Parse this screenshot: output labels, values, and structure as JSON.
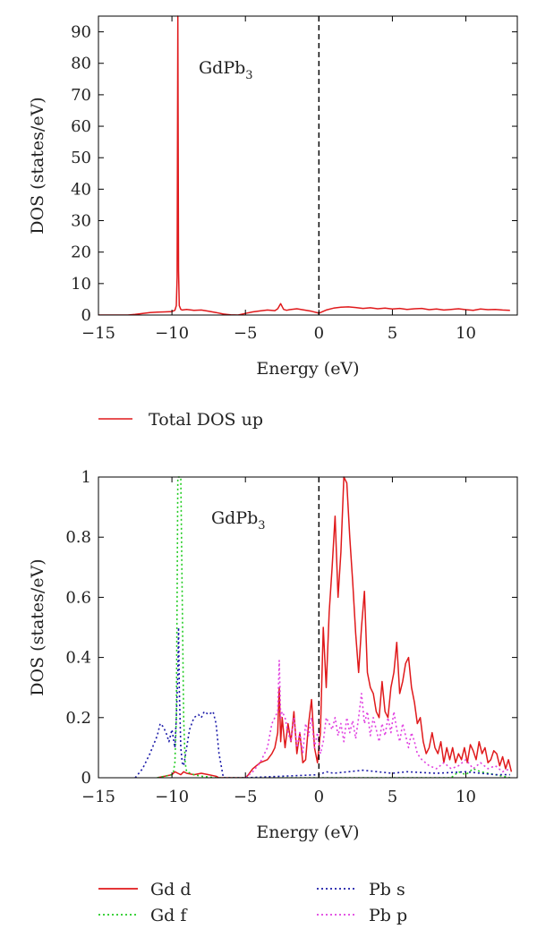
{
  "chart_data": [
    {
      "type": "line",
      "panel": "top",
      "annotation_main": "GdPb",
      "annotation_sub": "3",
      "xlabel": "Energy (eV)",
      "ylabel": "DOS (states/eV)",
      "xlim": [
        -15,
        13.5
      ],
      "ylim": [
        0,
        95
      ],
      "xticks": [
        -15,
        -10,
        -5,
        0,
        5,
        10
      ],
      "yticks": [
        0,
        10,
        20,
        30,
        40,
        50,
        60,
        70,
        80,
        90
      ],
      "xtick_labels": [
        "−15",
        "−10",
        "−5",
        "0",
        "5",
        "10"
      ],
      "ytick_labels": [
        "0",
        "10",
        "20",
        "30",
        "40",
        "50",
        "60",
        "70",
        "80",
        "90"
      ],
      "fermi_level": 0,
      "grid": false,
      "legend_position": "below",
      "series": [
        {
          "name": "Total DOS up",
          "color": "#e0191b",
          "style": "solid",
          "x": [
            -15,
            -13,
            -12.5,
            -12,
            -11.5,
            -11,
            -10.5,
            -10,
            -9.8,
            -9.7,
            -9.65,
            -9.6,
            -9.55,
            -9.5,
            -9.4,
            -9.3,
            -9,
            -8.5,
            -8,
            -7.5,
            -7,
            -6.5,
            -6,
            -5.5,
            -5,
            -4.5,
            -4,
            -3.5,
            -3,
            -2.8,
            -2.6,
            -2.4,
            -2.2,
            -2,
            -1.5,
            -1,
            -0.5,
            0,
            0.5,
            1,
            1.5,
            2,
            2.5,
            3,
            3.5,
            4,
            4.5,
            5,
            5.5,
            6,
            6.5,
            7,
            7.5,
            8,
            8.5,
            9,
            9.5,
            10,
            10.5,
            11,
            11.5,
            12,
            12.5,
            13
          ],
          "y": [
            0,
            0,
            0.2,
            0.5,
            0.8,
            0.9,
            1.0,
            1.1,
            1.5,
            3,
            12,
            95,
            14,
            3,
            1.8,
            1.6,
            1.8,
            1.5,
            1.6,
            1.2,
            0.8,
            0.3,
            0.05,
            0,
            0.5,
            1.0,
            1.3,
            1.6,
            1.4,
            2.0,
            3.6,
            1.8,
            1.5,
            1.7,
            2.0,
            1.6,
            1.2,
            0.6,
            1.6,
            2.2,
            2.5,
            2.6,
            2.4,
            2.1,
            2.3,
            2.0,
            2.2,
            1.9,
            2.1,
            1.8,
            2.0,
            2.1,
            1.7,
            1.9,
            1.6,
            1.8,
            2.0,
            1.7,
            1.5,
            1.9,
            1.7,
            1.8,
            1.6,
            1.5
          ]
        }
      ]
    },
    {
      "type": "line",
      "panel": "bottom",
      "annotation_main": "GdPb",
      "annotation_sub": "3",
      "xlabel": "Energy (eV)",
      "ylabel": "DOS (states/eV)",
      "xlim": [
        -15,
        13.5
      ],
      "ylim": [
        0,
        1
      ],
      "xticks": [
        -15,
        -10,
        -5,
        0,
        5,
        10
      ],
      "yticks": [
        0,
        0.2,
        0.4,
        0.6,
        0.8,
        1
      ],
      "xtick_labels": [
        "−15",
        "−10",
        "−5",
        "0",
        "5",
        "10"
      ],
      "ytick_labels": [
        "0",
        "0.2",
        "0.4",
        "0.6",
        "0.8",
        "1"
      ],
      "fermi_level": 0,
      "grid": false,
      "legend_position": "below",
      "series": [
        {
          "name": "Gd d",
          "color": "#e0191b",
          "style": "solid",
          "x": [
            -11,
            -10.5,
            -10,
            -9.8,
            -9.6,
            -9.4,
            -9.2,
            -9,
            -8.5,
            -8,
            -7.5,
            -7,
            -6.8,
            -6.5,
            -5.5,
            -5,
            -4.8,
            -4.5,
            -4,
            -3.5,
            -3.2,
            -3,
            -2.8,
            -2.7,
            -2.6,
            -2.5,
            -2.3,
            -2.1,
            -1.9,
            -1.7,
            -1.5,
            -1.3,
            -1.1,
            -0.9,
            -0.7,
            -0.5,
            -0.3,
            -0.1,
            0.1,
            0.3,
            0.5,
            0.7,
            0.9,
            1.1,
            1.3,
            1.5,
            1.7,
            1.9,
            2.1,
            2.3,
            2.5,
            2.7,
            2.9,
            3.1,
            3.3,
            3.5,
            3.7,
            3.9,
            4.1,
            4.3,
            4.5,
            4.7,
            4.9,
            5.1,
            5.3,
            5.5,
            5.7,
            5.9,
            6.1,
            6.3,
            6.5,
            6.7,
            6.9,
            7.1,
            7.3,
            7.5,
            7.7,
            7.9,
            8.1,
            8.3,
            8.5,
            8.7,
            8.9,
            9.1,
            9.3,
            9.5,
            9.7,
            9.9,
            10.1,
            10.3,
            10.5,
            10.7,
            10.9,
            11.1,
            11.3,
            11.5,
            11.7,
            11.9,
            12.1,
            12.3,
            12.5,
            12.7,
            12.9,
            13.1
          ],
          "y": [
            0,
            0.005,
            0.01,
            0.02,
            0.015,
            0.01,
            0.02,
            0.015,
            0.01,
            0.015,
            0.01,
            0.005,
            0,
            0,
            0,
            0,
            0.01,
            0.03,
            0.05,
            0.06,
            0.08,
            0.1,
            0.15,
            0.3,
            0.12,
            0.2,
            0.1,
            0.18,
            0.12,
            0.22,
            0.08,
            0.15,
            0.05,
            0.06,
            0.18,
            0.26,
            0.1,
            0.05,
            0.15,
            0.5,
            0.3,
            0.55,
            0.7,
            0.87,
            0.6,
            0.75,
            1.0,
            0.98,
            0.8,
            0.65,
            0.48,
            0.35,
            0.5,
            0.62,
            0.35,
            0.3,
            0.28,
            0.22,
            0.2,
            0.32,
            0.22,
            0.2,
            0.3,
            0.35,
            0.45,
            0.28,
            0.32,
            0.38,
            0.4,
            0.3,
            0.25,
            0.18,
            0.2,
            0.12,
            0.08,
            0.1,
            0.15,
            0.1,
            0.08,
            0.12,
            0.05,
            0.1,
            0.06,
            0.1,
            0.05,
            0.08,
            0.06,
            0.1,
            0.05,
            0.11,
            0.09,
            0.06,
            0.12,
            0.08,
            0.1,
            0.05,
            0.06,
            0.09,
            0.08,
            0.04,
            0.07,
            0.03,
            0.06,
            0.02
          ]
        },
        {
          "name": "Gd f",
          "color": "#22cc22",
          "style": "dotted",
          "x": [
            -11,
            -10,
            -9.9,
            -9.8,
            -9.7,
            -9.65,
            -9.6,
            -9.5,
            -9.4,
            -9.3,
            -9.2,
            -9.1,
            -9,
            -8.5,
            -8,
            -7,
            -6,
            -3,
            0,
            5,
            9,
            9.5,
            10,
            10.5,
            11,
            12,
            13
          ],
          "y": [
            0,
            0.01,
            0.02,
            0.05,
            0.2,
            0.6,
            1.0,
            1.0,
            1.0,
            0.6,
            0.2,
            0.05,
            0.02,
            0.01,
            0.005,
            0,
            0,
            0,
            0,
            0,
            0,
            0.02,
            0.01,
            0.03,
            0.02,
            0.01,
            0
          ]
        },
        {
          "name": "Pb s",
          "color": "#1a1aa8",
          "style": "dotted",
          "x": [
            -12.5,
            -12,
            -11.5,
            -11,
            -10.8,
            -10.6,
            -10.4,
            -10.2,
            -10,
            -9.8,
            -9.7,
            -9.6,
            -9.55,
            -9.5,
            -9.4,
            -9.3,
            -9.2,
            -9,
            -8.8,
            -8.5,
            -8.2,
            -8,
            -7.8,
            -7.5,
            -7.2,
            -7,
            -6.8,
            -6.5,
            -5,
            0,
            0.5,
            1,
            2,
            3,
            4,
            5,
            6,
            8,
            10,
            12,
            13
          ],
          "y": [
            0,
            0.03,
            0.08,
            0.14,
            0.18,
            0.17,
            0.15,
            0.12,
            0.16,
            0.1,
            0.2,
            0.35,
            0.5,
            0.3,
            0.1,
            0.05,
            0.04,
            0.1,
            0.16,
            0.2,
            0.21,
            0.2,
            0.22,
            0.21,
            0.22,
            0.18,
            0.08,
            0,
            0,
            0.01,
            0.02,
            0.015,
            0.02,
            0.025,
            0.02,
            0.015,
            0.02,
            0.015,
            0.02,
            0.01,
            0.01
          ]
        },
        {
          "name": "Pb p",
          "color": "#e040e0",
          "style": "dotted",
          "x": [
            -5,
            -4.5,
            -4,
            -3.5,
            -3.2,
            -3,
            -2.8,
            -2.7,
            -2.6,
            -2.5,
            -2.3,
            -2.1,
            -1.9,
            -1.7,
            -1.5,
            -1.3,
            -1.1,
            -0.9,
            -0.7,
            -0.5,
            -0.3,
            -0.1,
            0.1,
            0.3,
            0.5,
            0.7,
            0.9,
            1.1,
            1.3,
            1.5,
            1.7,
            1.9,
            2.1,
            2.3,
            2.5,
            2.7,
            2.9,
            3.1,
            3.3,
            3.5,
            3.7,
            3.9,
            4.1,
            4.3,
            4.5,
            4.7,
            4.9,
            5.1,
            5.3,
            5.5,
            5.7,
            5.9,
            6.1,
            6.3,
            6.5,
            6.7,
            7,
            7.5,
            8,
            8.5,
            9,
            9.5,
            10,
            10.5,
            11,
            11.5,
            12,
            12.5,
            13
          ],
          "y": [
            0,
            0.02,
            0.05,
            0.1,
            0.18,
            0.2,
            0.22,
            0.39,
            0.2,
            0.22,
            0.2,
            0.15,
            0.12,
            0.2,
            0.1,
            0.15,
            0.08,
            0.18,
            0.14,
            0.2,
            0.1,
            0.15,
            0.08,
            0.12,
            0.2,
            0.18,
            0.16,
            0.2,
            0.14,
            0.18,
            0.12,
            0.2,
            0.15,
            0.19,
            0.13,
            0.2,
            0.28,
            0.18,
            0.22,
            0.14,
            0.2,
            0.16,
            0.12,
            0.18,
            0.14,
            0.2,
            0.15,
            0.22,
            0.16,
            0.12,
            0.18,
            0.14,
            0.1,
            0.15,
            0.12,
            0.08,
            0.06,
            0.04,
            0.03,
            0.05,
            0.03,
            0.04,
            0.06,
            0.03,
            0.05,
            0.03,
            0.04,
            0.02,
            0.03
          ]
        }
      ]
    }
  ]
}
